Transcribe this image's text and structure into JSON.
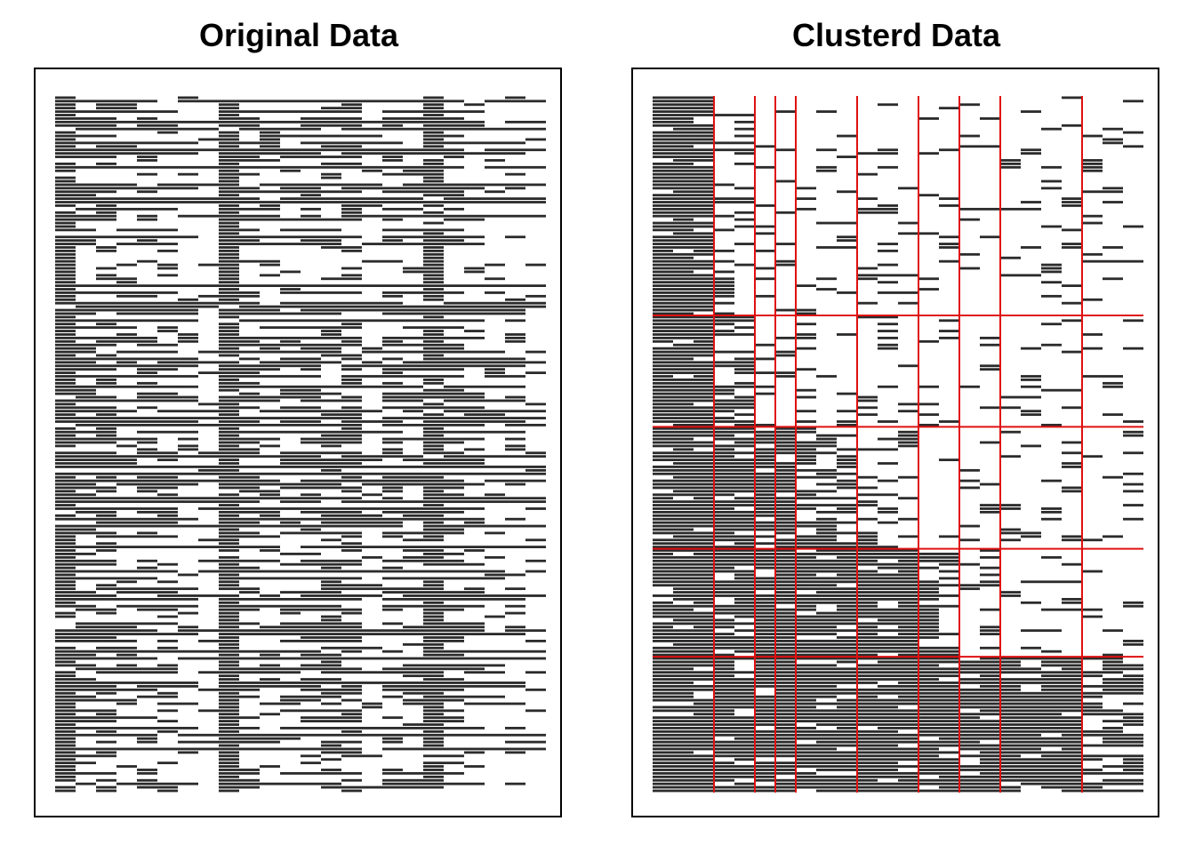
{
  "colors": {
    "cell": "#2b2b2b",
    "frame": "#000000",
    "grid": "#e01010",
    "background": "#ffffff"
  },
  "chart_data": [
    {
      "type": "heatmap",
      "title": "Original Data",
      "rows": 200,
      "cols": 24,
      "values": "binary 0/1 matrix (200 x 24), rows in original order",
      "column_group_order": [
        0,
        3,
        1,
        5,
        2,
        4,
        6,
        7,
        0,
        2,
        5,
        4,
        3,
        1,
        1,
        6,
        2,
        4,
        0,
        3,
        5,
        7,
        6,
        7
      ],
      "xlabel": "",
      "ylabel": "",
      "grid": false
    },
    {
      "type": "heatmap",
      "title": "Clusterd Data",
      "rows": 200,
      "cols": 24,
      "values": "same binary matrix with rows and columns reordered by cluster",
      "row_cluster_sizes": [
        63,
        32,
        35,
        31,
        39
      ],
      "col_cluster_sizes": [
        3,
        2,
        1,
        1,
        3,
        3,
        2,
        2,
        4,
        3
      ],
      "xlabel": "",
      "ylabel": "",
      "grid": false
    }
  ]
}
